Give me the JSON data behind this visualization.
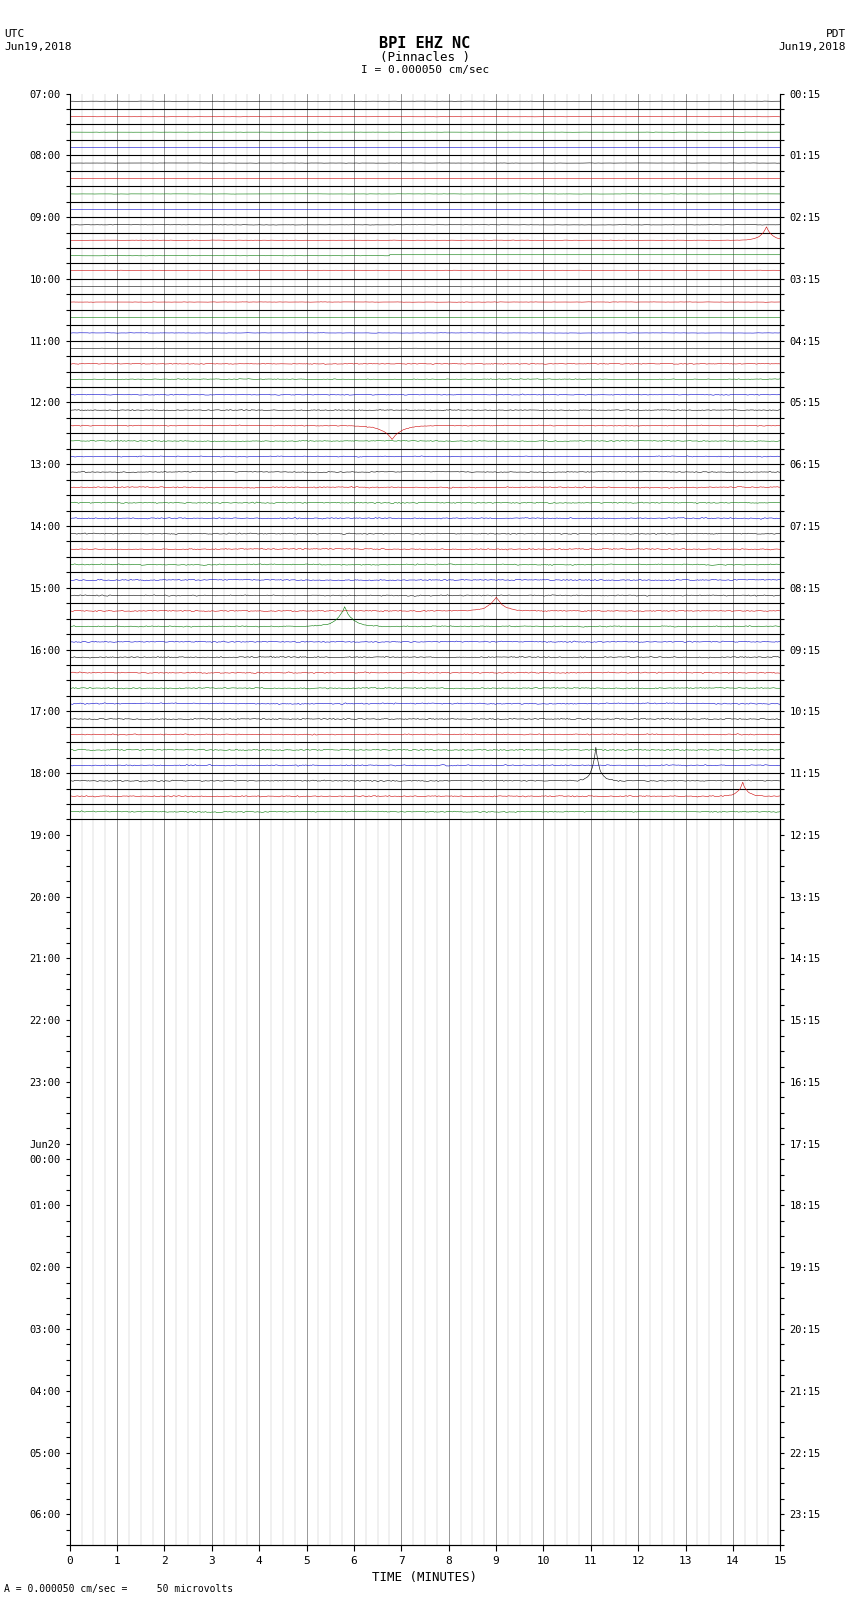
{
  "title_line1": "BPI EHZ NC",
  "title_line2": "(Pinnacles )",
  "scale_label": "I = 0.000050 cm/sec",
  "left_label_top": "UTC",
  "left_label_date": "Jun19,2018",
  "right_label_top": "PDT",
  "right_label_date": "Jun19,2018",
  "bottom_label": "TIME (MINUTES)",
  "scale_note": "= 0.000050 cm/sec =     50 microvolts",
  "n_traces": 47,
  "bg_color": "#ffffff",
  "grid_color": "#888888",
  "trace_line_color": "#000000",
  "trace_colors_cycle": [
    "#000000",
    "#cc0000",
    "#007700",
    "#0000cc"
  ],
  "left_tick_labels": [
    "07:00",
    "",
    "",
    "",
    "08:00",
    "",
    "",
    "",
    "09:00",
    "",
    "",
    "",
    "10:00",
    "",
    "",
    "",
    "11:00",
    "",
    "",
    "",
    "12:00",
    "",
    "",
    "",
    "13:00",
    "",
    "",
    "",
    "14:00",
    "",
    "",
    "",
    "15:00",
    "",
    "",
    "",
    "16:00",
    "",
    "",
    "",
    "17:00",
    "",
    "",
    "",
    "18:00",
    "",
    "",
    "",
    "19:00",
    "",
    "",
    "",
    "20:00",
    "",
    "",
    "",
    "21:00",
    "",
    "",
    "",
    "22:00",
    "",
    "",
    "",
    "23:00",
    "",
    "",
    "",
    "Jun20",
    "00:00",
    "",
    "",
    "01:00",
    "",
    "",
    "",
    "02:00",
    "",
    "",
    "",
    "03:00",
    "",
    "",
    "",
    "04:00",
    "",
    "",
    "",
    "05:00",
    "",
    "",
    "",
    "06:00",
    "",
    ""
  ],
  "right_tick_labels": [
    "00:15",
    "",
    "",
    "",
    "01:15",
    "",
    "",
    "",
    "02:15",
    "",
    "",
    "",
    "03:15",
    "",
    "",
    "",
    "04:15",
    "",
    "",
    "",
    "05:15",
    "",
    "",
    "",
    "06:15",
    "",
    "",
    "",
    "07:15",
    "",
    "",
    "",
    "08:15",
    "",
    "",
    "",
    "09:15",
    "",
    "",
    "",
    "10:15",
    "",
    "",
    "",
    "11:15",
    "",
    "",
    "",
    "12:15",
    "",
    "",
    "",
    "13:15",
    "",
    "",
    "",
    "14:15",
    "",
    "",
    "",
    "15:15",
    "",
    "",
    "",
    "16:15",
    "",
    "",
    "",
    "17:15",
    "",
    "",
    "",
    "18:15",
    "",
    "",
    "",
    "19:15",
    "",
    "",
    "",
    "20:15",
    "",
    "",
    "",
    "21:15",
    "",
    "",
    "",
    "22:15",
    "",
    "",
    "",
    "23:15",
    "",
    ""
  ],
  "figsize": [
    8.5,
    16.13
  ],
  "dpi": 100
}
